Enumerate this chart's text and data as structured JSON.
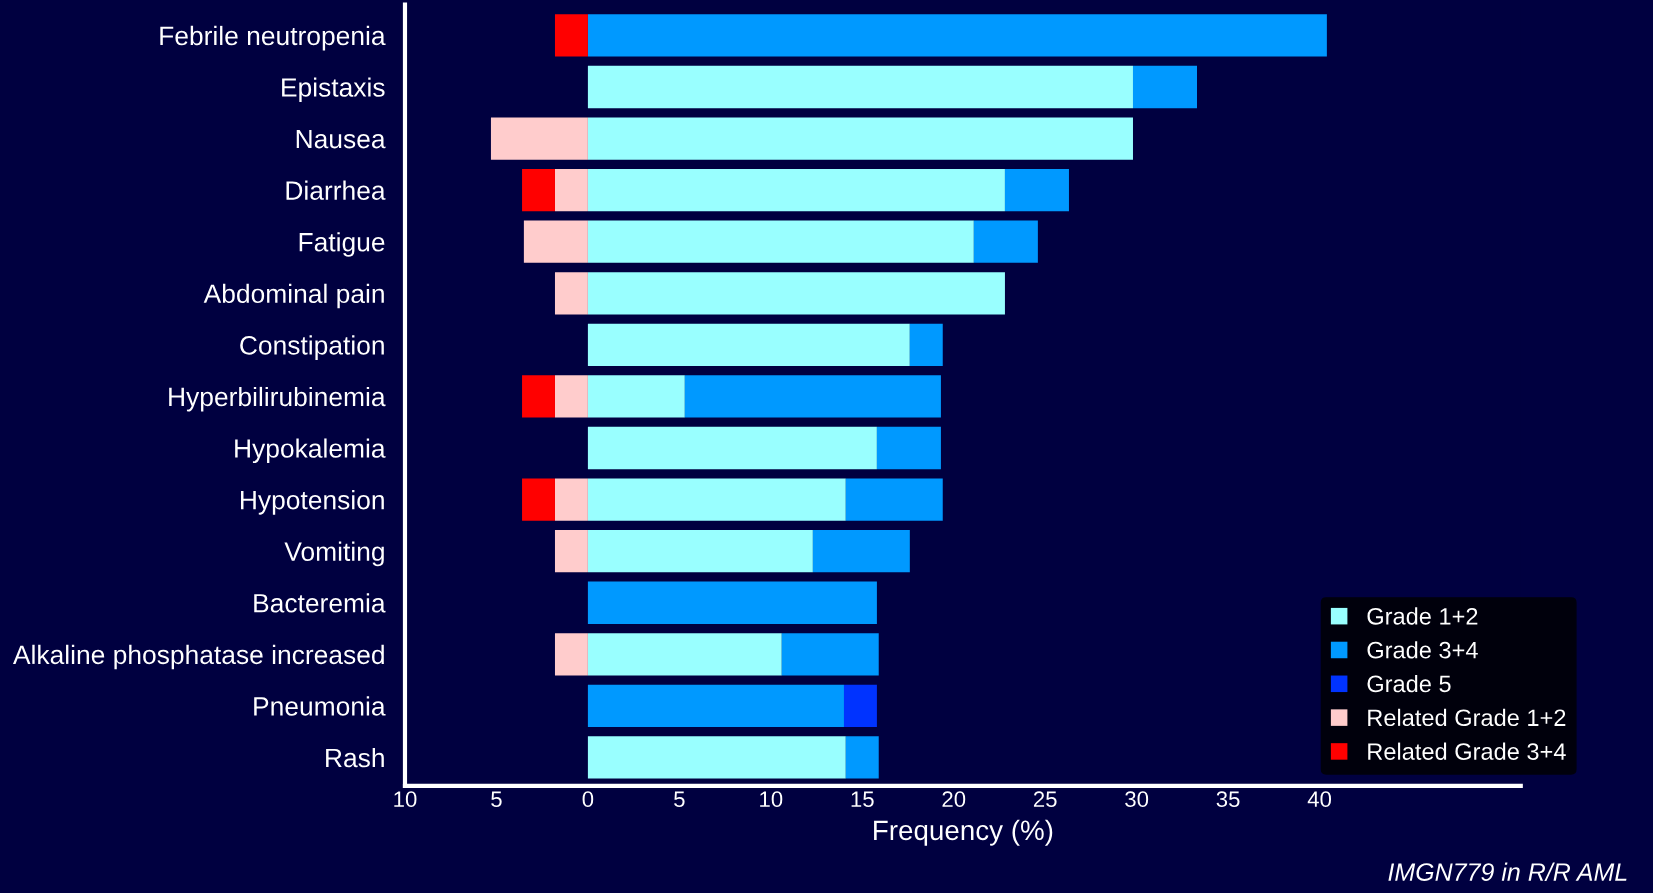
{
  "chart_data": {
    "type": "bar",
    "orientation": "horizontal",
    "stacked": true,
    "xlabel": "Frequency (%)",
    "categories": [
      "Febrile neutropenia",
      "Epistaxis",
      "Nausea",
      "Diarrhea",
      "Fatigue",
      "Abdominal pain",
      "Constipation",
      "Hyperbilirubinemia",
      "Hypokalemia",
      "Hypotension",
      "Vomiting",
      "Bacteremia",
      "Alkaline phosphatase increased",
      "Pneumonia",
      "Rash"
    ],
    "series": [
      {
        "name": "Grade 1+2",
        "color": "#99ffff",
        "values": [
          null,
          29.8,
          29.8,
          22.8,
          21.1,
          22.8,
          17.6,
          5.3,
          15.8,
          14.1,
          12.3,
          null,
          10.6,
          null,
          14.1
        ]
      },
      {
        "name": "Grade 3+4",
        "color": "#0099ff",
        "values": [
          40.4,
          3.5,
          null,
          3.5,
          3.5,
          null,
          1.8,
          14.0,
          3.5,
          5.3,
          5.3,
          15.8,
          5.3,
          14.0,
          1.8
        ]
      },
      {
        "name": "Grade 5",
        "color": "#0033ff",
        "values": [
          null,
          null,
          null,
          null,
          null,
          null,
          null,
          null,
          null,
          null,
          null,
          null,
          null,
          1.8,
          null
        ]
      },
      {
        "name": "Related Grade 1+2",
        "color": "#ffcccc",
        "values": [
          null,
          null,
          -5.3,
          -1.8,
          -3.5,
          -1.8,
          null,
          -1.8,
          null,
          -1.8,
          -1.8,
          null,
          -1.8,
          null,
          null
        ]
      },
      {
        "name": "Related Grade 3+4",
        "color": "#ff0000",
        "values": [
          -1.8,
          null,
          null,
          -1.8,
          null,
          null,
          null,
          -1.8,
          null,
          -1.8,
          null,
          null,
          null,
          null,
          null
        ]
      }
    ],
    "xlim": [
      -10,
      51
    ],
    "xticks": [
      {
        "value": -10,
        "label": "10"
      },
      {
        "value": -5,
        "label": "5"
      },
      0,
      5,
      10,
      15,
      20,
      25,
      30,
      35,
      40
    ],
    "grid": false,
    "legend": "bottom right",
    "annotations": [
      "IMGN779 in R/R AML"
    ]
  }
}
